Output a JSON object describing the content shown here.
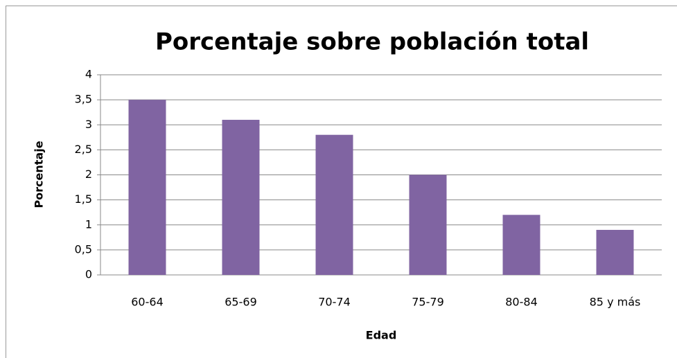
{
  "chart_data": {
    "type": "bar",
    "title": "Porcentaje sobre población total",
    "x_label": "Edad",
    "y_label": "Porcentaje",
    "categories": [
      "60-64",
      "65-69",
      "70-74",
      "75-79",
      "80-84",
      "85 y más"
    ],
    "values": [
      3.5,
      3.1,
      2.8,
      2.0,
      1.2,
      0.9
    ],
    "color": "#8064a2",
    "ylim": [
      0,
      4
    ],
    "yticks": [
      0,
      {
        "value": 0.5,
        "label": "0,5"
      },
      1,
      {
        "value": 1.5,
        "label": "1,5"
      },
      2,
      {
        "value": 2.5,
        "label": "2,5"
      },
      3,
      {
        "value": 3.5,
        "label": "3,5"
      },
      4
    ],
    "grid": true
  }
}
